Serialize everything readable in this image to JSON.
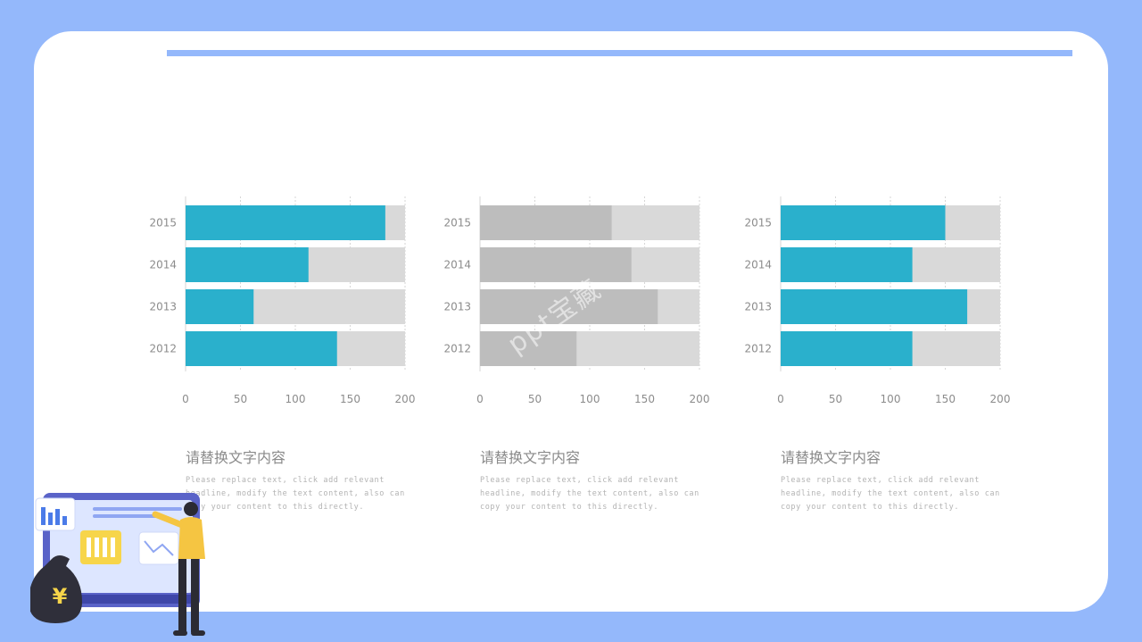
{
  "colors": {
    "background": "#94b8fb",
    "card": "#ffffff",
    "bar_teal": "#2ab0cc",
    "bar_gray": "#bdbdbd",
    "bar_track": "#d9d9d9",
    "accent_rule": "#94b8fb"
  },
  "watermark": "ppt宝藏",
  "chart_data": [
    {
      "type": "bar",
      "orientation": "horizontal",
      "stacked_with_track": true,
      "categories": [
        "2015",
        "2014",
        "2013",
        "2012"
      ],
      "values": [
        182,
        112,
        62,
        138
      ],
      "track_max": 200,
      "xlim": [
        0,
        200
      ],
      "xticks": [
        "0",
        "50",
        "100",
        "150",
        "200"
      ],
      "color": "#2ab0cc",
      "grid": true
    },
    {
      "type": "bar",
      "orientation": "horizontal",
      "stacked_with_track": true,
      "categories": [
        "2015",
        "2014",
        "2013",
        "2012"
      ],
      "values": [
        120,
        138,
        162,
        88
      ],
      "track_max": 200,
      "xlim": [
        0,
        200
      ],
      "xticks": [
        "0",
        "50",
        "100",
        "150",
        "200"
      ],
      "color": "#bdbdbd",
      "grid": true
    },
    {
      "type": "bar",
      "orientation": "horizontal",
      "stacked_with_track": true,
      "categories": [
        "2015",
        "2014",
        "2013",
        "2012"
      ],
      "values": [
        150,
        120,
        170,
        120
      ],
      "track_max": 200,
      "xlim": [
        0,
        200
      ],
      "xticks": [
        "0",
        "50",
        "100",
        "150",
        "200"
      ],
      "color": "#2ab0cc",
      "grid": true
    }
  ],
  "captions": [
    {
      "title": "请替换文字内容",
      "body": "Please replace text, click add relevant headline, modify the text content, also can copy your content to this directly."
    },
    {
      "title": "请替换文字内容",
      "body": "Please replace text, click add relevant headline, modify the text content, also can copy your content to this directly."
    },
    {
      "title": "请替换文字内容",
      "body": "Please replace text, click add relevant headline, modify the text content, also can copy your content to this directly."
    }
  ],
  "illustration": {
    "currency_symbol": "¥",
    "icons": [
      "bar-chart-icon",
      "money-bag-icon",
      "presenter-person-icon",
      "line-chart-icon"
    ]
  }
}
